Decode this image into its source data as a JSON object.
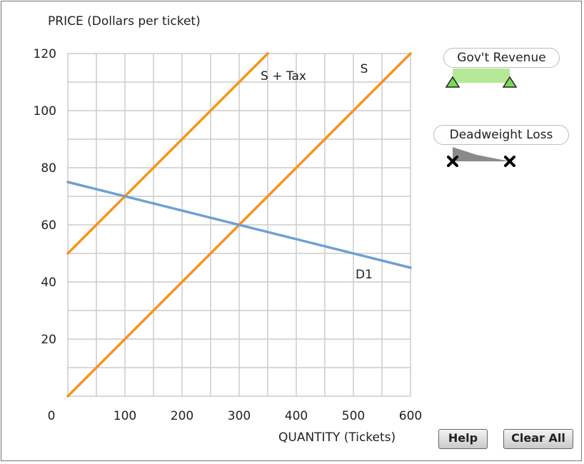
{
  "labels": {
    "y_axis": "PRICE (Dollars per ticket)",
    "x_axis": "QUANTITY (Tickets)"
  },
  "tools": {
    "govt_revenue": {
      "label": "Gov't Revenue",
      "color": "#b5e896",
      "marker_color": "#7ed957",
      "icon": "triangle-marker-icon"
    },
    "deadweight_loss": {
      "label": "Deadweight Loss",
      "color": "#8a8a8a",
      "marker_color": "#000000",
      "icon": "x-marker-icon"
    }
  },
  "buttons": {
    "help": "Help",
    "clear_all": "Clear All"
  },
  "colors": {
    "supply": "#f7941d",
    "demand": "#6f9fd0",
    "grid": "#cccccc"
  },
  "chart_data": {
    "type": "line",
    "xlabel": "QUANTITY (Tickets)",
    "ylabel": "PRICE (Dollars per ticket)",
    "xlim": [
      0,
      600
    ],
    "ylim": [
      0,
      120
    ],
    "x_tick_labels": [
      "0",
      "100",
      "200",
      "300",
      "400",
      "500",
      "600"
    ],
    "y_tick_labels": [
      "20",
      "40",
      "60",
      "80",
      "100",
      "120"
    ],
    "grid": true,
    "series": [
      {
        "name": "S",
        "color": "#f7941d",
        "points": [
          [
            0,
            0
          ],
          [
            600,
            120
          ]
        ]
      },
      {
        "name": "S + Tax",
        "color": "#f7941d",
        "points": [
          [
            0,
            50
          ],
          [
            350,
            120
          ]
        ]
      },
      {
        "name": "D1",
        "color": "#6f9fd0",
        "points": [
          [
            0,
            75
          ],
          [
            600,
            45
          ]
        ]
      }
    ]
  }
}
